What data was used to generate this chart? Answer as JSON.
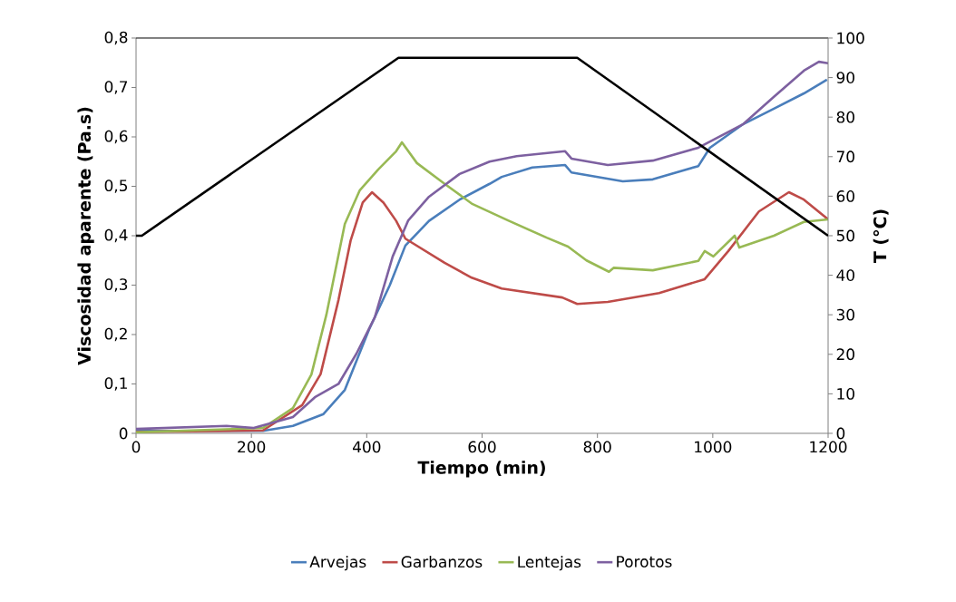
{
  "chart_data": {
    "type": "line",
    "xlabel": "Tiempo (min)",
    "ylabel": "Viscosidad aparente (Pa.s)",
    "y2label": "T (°C)",
    "legend": "bottom",
    "xlim": [
      0,
      1200
    ],
    "xticks": [
      0,
      200,
      400,
      600,
      800,
      1000,
      1200
    ],
    "ylim": [
      0,
      0.8
    ],
    "yticks": [
      0,
      {
        "value": 0.1,
        "label": "0,1"
      },
      {
        "value": 0.2,
        "label": "0,2"
      },
      {
        "value": 0.3,
        "label": "0,3"
      },
      {
        "value": 0.4,
        "label": "0,4"
      },
      {
        "value": 0.5,
        "label": "0,5"
      },
      {
        "value": 0.6,
        "label": "0,6"
      },
      {
        "value": 0.7,
        "label": "0,7"
      },
      {
        "value": 0.8,
        "label": "0,8"
      }
    ],
    "y2lim": [
      0,
      100
    ],
    "y2ticks": [
      0,
      10,
      20,
      30,
      40,
      50,
      60,
      70,
      80,
      90,
      100
    ],
    "series": [
      {
        "name": "Arvejas",
        "color": "#4a7ebb",
        "x": [
          0,
          220,
          272,
          325,
          362,
          404,
          440,
          467,
          508,
          561,
          613,
          634,
          687,
          744,
          755,
          844,
          896,
          975,
          995,
          1053,
          1106,
          1158,
          1198
        ],
        "values": [
          0.005,
          0.005,
          0.015,
          0.039,
          0.088,
          0.21,
          0.3,
          0.38,
          0.43,
          0.473,
          0.505,
          0.519,
          0.538,
          0.543,
          0.528,
          0.51,
          0.514,
          0.541,
          0.578,
          0.626,
          0.657,
          0.688,
          0.716
        ]
      },
      {
        "name": "Garbanzos",
        "color": "#be4b48",
        "x": [
          0,
          220,
          288,
          320,
          351,
          372,
          393,
          409,
          429,
          451,
          467,
          535,
          582,
          634,
          739,
          765,
          818,
          907,
          986,
          1027,
          1080,
          1132,
          1158,
          1200
        ],
        "values": [
          0.003,
          0.006,
          0.057,
          0.12,
          0.27,
          0.39,
          0.467,
          0.488,
          0.467,
          0.43,
          0.394,
          0.345,
          0.315,
          0.293,
          0.275,
          0.262,
          0.266,
          0.284,
          0.312,
          0.369,
          0.449,
          0.488,
          0.473,
          0.433
        ]
      },
      {
        "name": "Lentejas",
        "color": "#98b954",
        "x": [
          0,
          220,
          272,
          304,
          330,
          362,
          388,
          420,
          451,
          461,
          487,
          535,
          582,
          645,
          712,
          749,
          781,
          820,
          828,
          896,
          975,
          986,
          1001,
          1038,
          1046,
          1106,
          1158,
          1200
        ],
        "values": [
          0.002,
          0.011,
          0.051,
          0.119,
          0.24,
          0.424,
          0.492,
          0.534,
          0.571,
          0.589,
          0.547,
          0.505,
          0.465,
          0.431,
          0.396,
          0.378,
          0.35,
          0.327,
          0.335,
          0.33,
          0.349,
          0.369,
          0.358,
          0.4,
          0.376,
          0.4,
          0.428,
          0.433
        ]
      },
      {
        "name": "Porotos",
        "color": "#7d60a0",
        "x": [
          0,
          157,
          204,
          272,
          310,
          351,
          382,
          414,
          445,
          472,
          508,
          561,
          613,
          660,
          744,
          755,
          818,
          896,
          975,
          1053,
          1106,
          1158,
          1184,
          1200
        ],
        "values": [
          0.009,
          0.015,
          0.011,
          0.033,
          0.073,
          0.1,
          0.161,
          0.235,
          0.358,
          0.431,
          0.479,
          0.525,
          0.55,
          0.561,
          0.571,
          0.556,
          0.543,
          0.552,
          0.578,
          0.626,
          0.681,
          0.734,
          0.752,
          0.749
        ]
      },
      {
        "color": "#000000",
        "axis": "y2",
        "x": [
          0,
          10,
          455,
          765,
          1200
        ],
        "values": [
          50,
          50,
          95,
          95,
          50
        ]
      }
    ]
  }
}
